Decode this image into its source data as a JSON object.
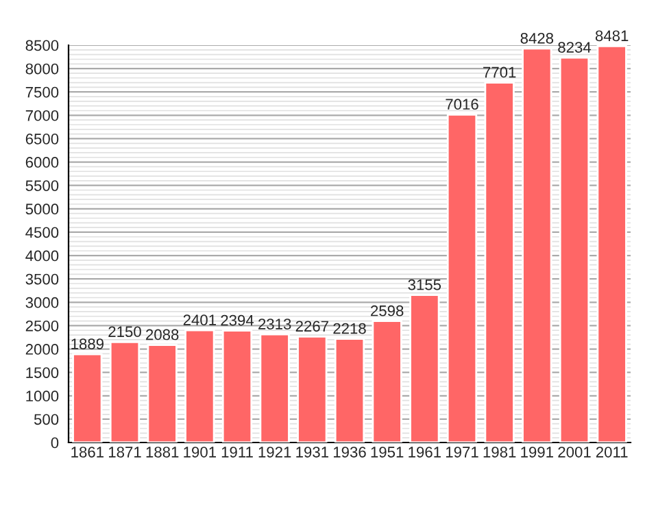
{
  "chart_data": {
    "type": "bar",
    "categories": [
      "1861",
      "1871",
      "1881",
      "1901",
      "1911",
      "1921",
      "1931",
      "1936",
      "1951",
      "1961",
      "1971",
      "1981",
      "1991",
      "2001",
      "2011"
    ],
    "values": [
      1889,
      2150,
      2088,
      2401,
      2394,
      2313,
      2267,
      2218,
      2598,
      3155,
      7016,
      7701,
      8428,
      8234,
      8481
    ],
    "color": "#ff6666",
    "ylim": [
      0,
      8500
    ],
    "yticks": [
      0,
      500,
      1000,
      1500,
      2000,
      2500,
      3000,
      3500,
      4000,
      4500,
      5000,
      5500,
      6000,
      6500,
      7000,
      7500,
      8000,
      8500
    ],
    "grid": "y",
    "data_labels": true
  }
}
